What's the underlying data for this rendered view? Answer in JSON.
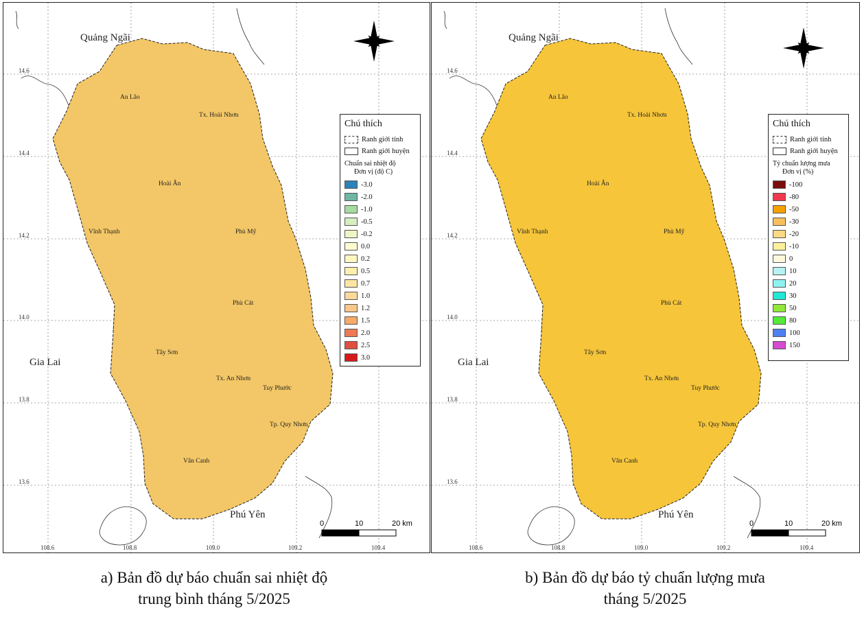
{
  "maps": [
    {
      "provinces": {
        "north": "Quảng Ngãi",
        "west": "Gia Lai",
        "south": "Phú Yên"
      },
      "districts": [
        "An Lão",
        "Tx. Hoài Nhơn",
        "Hoài Ân",
        "Vĩnh Thạnh",
        "Phù Mỹ",
        "Phù Cát",
        "Tây Sơn",
        "Tx. An Nhơn",
        "Tuy Phước",
        "Tp. Quy Nhơn",
        "Vân Canh"
      ],
      "lat_ticks": [
        "14.6",
        "14.4",
        "14.2",
        "14.0",
        "13.8",
        "13.6"
      ],
      "lon_ticks": [
        "108.6",
        "108.8",
        "109.0",
        "109.2",
        "109.4"
      ],
      "scalebar": {
        "labels": [
          "0",
          "10",
          "20 km"
        ]
      },
      "fill_color": "#f3c767",
      "legend": {
        "title": "Chú thích",
        "boundary_items": [
          "Ranh giới tỉnh",
          "Ranh giới huyện"
        ],
        "class_title": "Chuẩn sai nhiệt độ",
        "class_unit": "Đơn vị (độ C)",
        "classes": [
          {
            "label": "-3.0",
            "color": "#2b83ba"
          },
          {
            "label": "-2.0",
            "color": "#6fb6a4"
          },
          {
            "label": "-1.0",
            "color": "#a6dba0"
          },
          {
            "label": "-0.5",
            "color": "#d6eec0"
          },
          {
            "label": "-0.2",
            "color": "#eef6c6"
          },
          {
            "label": "0.0",
            "color": "#fffccf"
          },
          {
            "label": "0.2",
            "color": "#fff7c2"
          },
          {
            "label": "0.5",
            "color": "#fff0b0"
          },
          {
            "label": "0.7",
            "color": "#fde6a4"
          },
          {
            "label": "1.0",
            "color": "#fbd99a"
          },
          {
            "label": "1.2",
            "color": "#f9c78a"
          },
          {
            "label": "1.5",
            "color": "#f7aa6a"
          },
          {
            "label": "2.0",
            "color": "#ee7a55"
          },
          {
            "label": "2.5",
            "color": "#e1503f"
          },
          {
            "label": "3.0",
            "color": "#d7191c"
          }
        ]
      },
      "caption": [
        "a) Bản đồ dự báo chuẩn sai nhiệt độ",
        "trung bình tháng 5/2025"
      ]
    },
    {
      "provinces": {
        "north": "Quảng Ngãi",
        "west": "Gia Lai",
        "south": "Phú Yên"
      },
      "districts": [
        "An Lão",
        "Tx. Hoài Nhơn",
        "Hoài Ân",
        "Vĩnh Thạnh",
        "Phù Mỹ",
        "Phù Cát",
        "Tây Sơn",
        "Tx. An Nhơn",
        "Tuy Phước",
        "Tp. Quy Nhơn",
        "Vân Canh"
      ],
      "lat_ticks": [
        "14.6",
        "14.4",
        "14.2",
        "14.0",
        "13.8",
        "13.6"
      ],
      "lon_ticks": [
        "108.6",
        "108.8",
        "109.0",
        "109.2",
        "109.4"
      ],
      "scalebar": {
        "labels": [
          "0",
          "10",
          "20 km"
        ]
      },
      "fill_color": "#f6c53a",
      "legend": {
        "title": "Chú thích",
        "boundary_items": [
          "Ranh giới tỉnh",
          "Ranh giới huyện"
        ],
        "class_title": "Tỷ chuẩn lượng mưa",
        "class_unit": "Đơn vị (%)",
        "classes": [
          {
            "label": "-100",
            "color": "#7a0c0c"
          },
          {
            "label": "-80",
            "color": "#f0394f"
          },
          {
            "label": "-50",
            "color": "#f5a100"
          },
          {
            "label": "-30",
            "color": "#f8bf5f"
          },
          {
            "label": "-20",
            "color": "#fbd985"
          },
          {
            "label": "-10",
            "color": "#fdf09a"
          },
          {
            "label": "0",
            "color": "#fdf8dc"
          },
          {
            "label": "10",
            "color": "#b8f1f3"
          },
          {
            "label": "20",
            "color": "#8ef3f0"
          },
          {
            "label": "30",
            "color": "#22e6d6"
          },
          {
            "label": "50",
            "color": "#90e83a"
          },
          {
            "label": "80",
            "color": "#55ea3a"
          },
          {
            "label": "100",
            "color": "#4f7ff0"
          },
          {
            "label": "150",
            "color": "#d64bd0"
          }
        ]
      },
      "caption": [
        "b) Bản đồ dự báo tỷ chuẩn lượng mưa",
        "tháng 5/2025"
      ]
    }
  ]
}
